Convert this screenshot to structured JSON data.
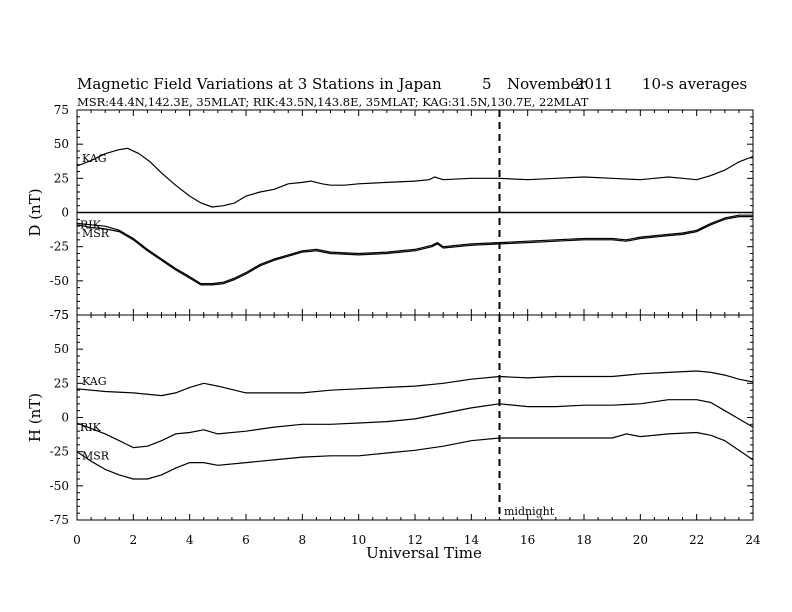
{
  "figure": {
    "title": "Magnetic Field Variations at 3 Stations in Japan",
    "date_day": "5",
    "date_month": "November",
    "date_year": "2011",
    "averaging": "10-s averages",
    "station_info": "MSR:44.4N,142.3E, 35MLAT;  RIK:43.5N,143.8E, 35MLAT;  KAG:31.5N,130.7E, 22MLAT",
    "xlabel": "Universal Time",
    "midnight_label": "midnight"
  },
  "chart_data": [
    {
      "type": "line",
      "panel": "top",
      "ylabel": "D (nT)",
      "xlim": [
        0,
        24
      ],
      "ylim": [
        -75,
        75
      ],
      "xticks": [
        0,
        2,
        4,
        6,
        8,
        10,
        12,
        14,
        16,
        18,
        20,
        22,
        24
      ],
      "yticks": [
        75,
        50,
        25,
        0,
        -25,
        -50,
        -75
      ],
      "zero_line": true,
      "vline_x": 15,
      "series": [
        {
          "name": "KAG",
          "x": [
            0,
            0.5,
            1,
            1.5,
            1.8,
            2.2,
            2.6,
            3,
            3.5,
            4,
            4.4,
            4.8,
            5.2,
            5.6,
            6,
            6.5,
            7,
            7.5,
            8,
            8.3,
            8.7,
            9,
            9.5,
            10,
            11,
            12,
            12.5,
            12.7,
            13,
            14,
            15,
            16,
            17,
            18,
            19,
            20,
            20.5,
            21,
            21.5,
            22,
            22.5,
            23,
            23.5,
            24
          ],
          "y": [
            34,
            38,
            43,
            46,
            47,
            43,
            37,
            29,
            20,
            12,
            7,
            4,
            5,
            7,
            12,
            15,
            17,
            21,
            22,
            23,
            21,
            20,
            20,
            21,
            22,
            23,
            24,
            26,
            24,
            25,
            25,
            24,
            25,
            26,
            25,
            24,
            25,
            26,
            25,
            24,
            27,
            31,
            37,
            41
          ]
        },
        {
          "name": "RIK",
          "x": [
            0,
            0.5,
            1,
            1.5,
            2,
            2.5,
            3,
            3.5,
            4,
            4.4,
            4.8,
            5.2,
            5.6,
            6,
            6.5,
            7,
            7.5,
            8,
            8.5,
            9,
            10,
            11,
            12,
            12.6,
            12.8,
            13,
            14,
            15,
            16,
            17,
            18,
            19,
            19.5,
            20,
            21,
            21.5,
            22,
            22.5,
            23,
            23.5,
            24
          ],
          "y": [
            -8,
            -9,
            -10,
            -13,
            -19,
            -27,
            -34,
            -41,
            -47,
            -52,
            -52,
            -51,
            -48,
            -44,
            -38,
            -34,
            -31,
            -28,
            -27,
            -29,
            -30,
            -29,
            -27,
            -24,
            -22,
            -25,
            -23,
            -22,
            -21,
            -20,
            -19,
            -19,
            -20,
            -18,
            -16,
            -15,
            -13,
            -8,
            -4,
            -2,
            -2
          ]
        },
        {
          "name": "MSR",
          "x": [
            0,
            0.5,
            1,
            1.5,
            2,
            2.5,
            3,
            3.5,
            4,
            4.4,
            4.8,
            5.2,
            5.6,
            6,
            6.5,
            7,
            7.5,
            8,
            8.5,
            9,
            10,
            11,
            12,
            12.6,
            12.8,
            13,
            14,
            15,
            16,
            17,
            18,
            19,
            19.5,
            20,
            21,
            21.5,
            22,
            22.5,
            23,
            23.5,
            24
          ],
          "y": [
            -9,
            -11,
            -12,
            -14,
            -20,
            -28,
            -35,
            -42,
            -48,
            -53,
            -53,
            -52,
            -49,
            -45,
            -39,
            -35,
            -32,
            -29,
            -28,
            -30,
            -31,
            -30,
            -28,
            -25,
            -23,
            -26,
            -24,
            -23,
            -22,
            -21,
            -20,
            -20,
            -21,
            -19,
            -17,
            -16,
            -14,
            -9,
            -5,
            -3,
            -3
          ]
        }
      ],
      "series_labels": [
        "KAG",
        "RIK",
        "MSR"
      ]
    },
    {
      "type": "line",
      "panel": "bottom",
      "ylabel": "H (nT)",
      "xlim": [
        0,
        24
      ],
      "ylim": [
        -75,
        75
      ],
      "xticks": [
        0,
        2,
        4,
        6,
        8,
        10,
        12,
        14,
        16,
        18,
        20,
        22,
        24
      ],
      "yticks": [
        75,
        50,
        25,
        0,
        -25,
        -50,
        -75
      ],
      "zero_line": false,
      "vline_x": 15,
      "series": [
        {
          "name": "KAG",
          "x": [
            0,
            1,
            2,
            3,
            3.5,
            4,
            4.5,
            5,
            6,
            7,
            8,
            9,
            10,
            11,
            12,
            13,
            14,
            15,
            16,
            17,
            18,
            19,
            20,
            21,
            22,
            22.5,
            23,
            23.5,
            24
          ],
          "y": [
            21,
            19,
            18,
            16,
            18,
            22,
            25,
            23,
            18,
            18,
            18,
            20,
            21,
            22,
            23,
            25,
            28,
            30,
            29,
            30,
            30,
            30,
            32,
            33,
            34,
            33,
            31,
            28,
            26
          ]
        },
        {
          "name": "RIK",
          "x": [
            0,
            0.5,
            1,
            1.5,
            2,
            2.5,
            3,
            3.5,
            4,
            4.5,
            5,
            6,
            7,
            8,
            9,
            10,
            11,
            12,
            13,
            14,
            15,
            16,
            17,
            18,
            19,
            20,
            21,
            22,
            22.5,
            23,
            23.5,
            24
          ],
          "y": [
            -4,
            -8,
            -12,
            -17,
            -22,
            -21,
            -17,
            -12,
            -11,
            -9,
            -12,
            -10,
            -7,
            -5,
            -5,
            -4,
            -3,
            -1,
            3,
            7,
            10,
            8,
            8,
            9,
            9,
            10,
            13,
            13,
            11,
            5,
            -1,
            -7
          ]
        },
        {
          "name": "MSR",
          "x": [
            0,
            0.5,
            1,
            1.5,
            2,
            2.5,
            3,
            3.5,
            4,
            4.5,
            5,
            6,
            7,
            8,
            9,
            10,
            11,
            12,
            13,
            14,
            15,
            16,
            17,
            18,
            19,
            19.5,
            20,
            21,
            22,
            22.5,
            23,
            23.5,
            24
          ],
          "y": [
            -25,
            -32,
            -38,
            -42,
            -45,
            -45,
            -42,
            -37,
            -33,
            -33,
            -35,
            -33,
            -31,
            -29,
            -28,
            -28,
            -26,
            -24,
            -21,
            -17,
            -15,
            -15,
            -15,
            -15,
            -15,
            -12,
            -14,
            -12,
            -11,
            -13,
            -17,
            -24,
            -31
          ]
        }
      ],
      "series_labels": [
        "KAG",
        "RIK",
        "MSR"
      ]
    }
  ]
}
